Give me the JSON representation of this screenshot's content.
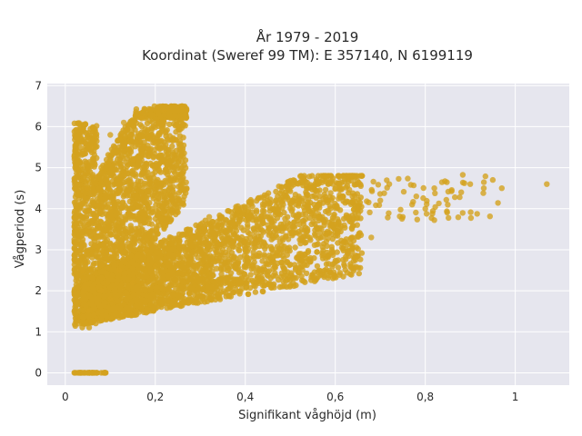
{
  "chart_data": {
    "type": "scatter",
    "title_line1": "År 1979 - 2019",
    "title_line2": "Koordinat (Sweref 99 TM): E 357140, N 6199119",
    "xlabel": "Signifikant våghöjd (m)",
    "ylabel": "Vågperiod (s)",
    "xlim": [
      -0.04,
      1.12
    ],
    "ylim": [
      -0.3,
      7.05
    ],
    "xticks": [
      0,
      0.2,
      0.4,
      0.6,
      0.8,
      1
    ],
    "xtick_labels": [
      "0",
      "0,2",
      "0,4",
      "0,6",
      "0,8",
      "1"
    ],
    "yticks": [
      0,
      1,
      2,
      3,
      4,
      5,
      6,
      7
    ],
    "ytick_labels": [
      "0",
      "1",
      "2",
      "3",
      "4",
      "5",
      "6",
      "7"
    ],
    "grid": true,
    "colors": {
      "marker": "#d4a21e",
      "plot_background": "#e6e6ee",
      "grid": "#ffffff"
    },
    "clusters_description_points": {
      "swell_cluster": [
        [
          0.03,
          1.2
        ],
        [
          0.04,
          2.5
        ],
        [
          0.05,
          3.5
        ],
        [
          0.05,
          4.5
        ],
        [
          0.06,
          5.5
        ],
        [
          0.08,
          3.0
        ],
        [
          0.08,
          5.0
        ],
        [
          0.1,
          4.0
        ],
        [
          0.1,
          5.8
        ],
        [
          0.12,
          4.6
        ],
        [
          0.13,
          6.1
        ],
        [
          0.15,
          5.2
        ],
        [
          0.17,
          6.2
        ],
        [
          0.2,
          5.6
        ],
        [
          0.22,
          6.4
        ],
        [
          0.25,
          6.0
        ],
        [
          0.26,
          6.5
        ]
      ],
      "wind_sea_cluster": [
        [
          0.05,
          1.5
        ],
        [
          0.08,
          2.0
        ],
        [
          0.1,
          1.8
        ],
        [
          0.12,
          2.5
        ],
        [
          0.15,
          2.2
        ],
        [
          0.18,
          3.0
        ],
        [
          0.2,
          2.6
        ],
        [
          0.22,
          3.6
        ],
        [
          0.25,
          2.9
        ],
        [
          0.28,
          3.3
        ],
        [
          0.3,
          2.5
        ],
        [
          0.32,
          3.8
        ],
        [
          0.35,
          3.0
        ],
        [
          0.38,
          4.0
        ],
        [
          0.4,
          3.2
        ],
        [
          0.42,
          2.8
        ],
        [
          0.45,
          3.6
        ],
        [
          0.48,
          4.2
        ],
        [
          0.5,
          3.4
        ],
        [
          0.52,
          2.9
        ],
        [
          0.55,
          3.9
        ],
        [
          0.58,
          3.2
        ],
        [
          0.6,
          4.5
        ],
        [
          0.62,
          3.6
        ],
        [
          0.65,
          4.0
        ],
        [
          0.68,
          3.3
        ],
        [
          0.7,
          4.2
        ],
        [
          0.72,
          4.6
        ],
        [
          0.75,
          3.8
        ],
        [
          0.78,
          4.3
        ],
        [
          0.8,
          4.0
        ],
        [
          0.82,
          4.5
        ],
        [
          0.85,
          4.1
        ],
        [
          0.88,
          4.4
        ],
        [
          0.9,
          4.6
        ],
        [
          0.93,
          4.5
        ],
        [
          0.95,
          4.7
        ],
        [
          0.97,
          4.5
        ],
        [
          1.07,
          4.6
        ]
      ],
      "zero_period_points": [
        [
          0.02,
          0
        ],
        [
          0.03,
          0
        ],
        [
          0.04,
          0
        ],
        [
          0.05,
          0
        ],
        [
          0.06,
          0
        ],
        [
          0.07,
          0
        ],
        [
          0.08,
          0
        ],
        [
          0.09,
          0
        ]
      ]
    }
  }
}
